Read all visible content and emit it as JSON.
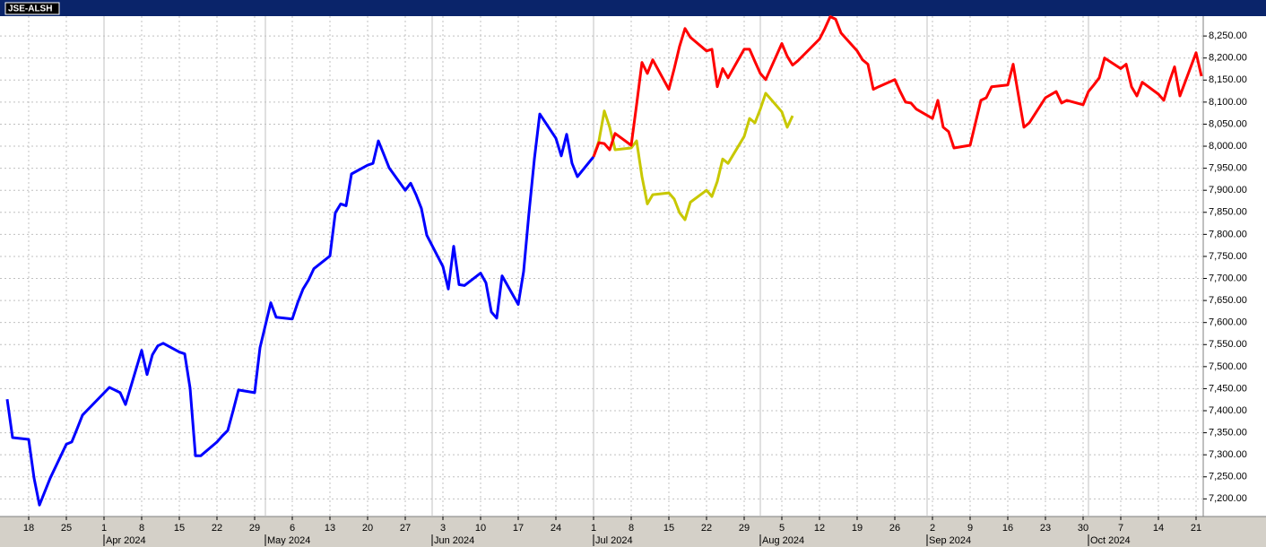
{
  "chart_data": {
    "type": "line",
    "title": "JSE-ALSH",
    "xlim": [
      "2024-03-14",
      "2024-10-22"
    ],
    "ylim": [
      7160,
      8295
    ],
    "yticks": [
      {
        "value": 7200,
        "label": "7,200.00"
      },
      {
        "value": 7250,
        "label": "7,250.00"
      },
      {
        "value": 7300,
        "label": "7,300.00"
      },
      {
        "value": 7350,
        "label": "7,350.00"
      },
      {
        "value": 7400,
        "label": "7,400.00"
      },
      {
        "value": 7450,
        "label": "7,450.00"
      },
      {
        "value": 7500,
        "label": "7,500.00"
      },
      {
        "value": 7550,
        "label": "7,550.00"
      },
      {
        "value": 7600,
        "label": "7,600.00"
      },
      {
        "value": 7650,
        "label": "7,650.00"
      },
      {
        "value": 7700,
        "label": "7,700.00"
      },
      {
        "value": 7750,
        "label": "7,750.00"
      },
      {
        "value": 7800,
        "label": "7,800.00"
      },
      {
        "value": 7850,
        "label": "7,850.00"
      },
      {
        "value": 7900,
        "label": "7,900.00"
      },
      {
        "value": 7950,
        "label": "7,950.00"
      },
      {
        "value": 8000,
        "label": "8,000.00"
      },
      {
        "value": 8050,
        "label": "8,050.00"
      },
      {
        "value": 8100,
        "label": "8,100.00"
      },
      {
        "value": 8150,
        "label": "8,150.00"
      },
      {
        "value": 8200,
        "label": "8,200.00"
      },
      {
        "value": 8250,
        "label": "8,250.00"
      }
    ],
    "xticks": [
      {
        "value": "2024-03-18",
        "label": "18"
      },
      {
        "value": "2024-03-25",
        "label": "25"
      },
      {
        "value": "2024-04-01",
        "label": "1"
      },
      {
        "value": "2024-04-08",
        "label": "8"
      },
      {
        "value": "2024-04-15",
        "label": "15"
      },
      {
        "value": "2024-04-22",
        "label": "22"
      },
      {
        "value": "2024-04-29",
        "label": "29"
      },
      {
        "value": "2024-05-06",
        "label": "6"
      },
      {
        "value": "2024-05-13",
        "label": "13"
      },
      {
        "value": "2024-05-20",
        "label": "20"
      },
      {
        "value": "2024-05-27",
        "label": "27"
      },
      {
        "value": "2024-06-03",
        "label": "3"
      },
      {
        "value": "2024-06-10",
        "label": "10"
      },
      {
        "value": "2024-06-17",
        "label": "17"
      },
      {
        "value": "2024-06-24",
        "label": "24"
      },
      {
        "value": "2024-07-01",
        "label": "1"
      },
      {
        "value": "2024-07-08",
        "label": "8"
      },
      {
        "value": "2024-07-15",
        "label": "15"
      },
      {
        "value": "2024-07-22",
        "label": "22"
      },
      {
        "value": "2024-07-29",
        "label": "29"
      },
      {
        "value": "2024-08-05",
        "label": "5"
      },
      {
        "value": "2024-08-12",
        "label": "12"
      },
      {
        "value": "2024-08-19",
        "label": "19"
      },
      {
        "value": "2024-08-26",
        "label": "26"
      },
      {
        "value": "2024-09-02",
        "label": "2"
      },
      {
        "value": "2024-09-09",
        "label": "9"
      },
      {
        "value": "2024-09-16",
        "label": "16"
      },
      {
        "value": "2024-09-23",
        "label": "23"
      },
      {
        "value": "2024-09-30",
        "label": "30"
      },
      {
        "value": "2024-10-07",
        "label": "7"
      },
      {
        "value": "2024-10-14",
        "label": "14"
      },
      {
        "value": "2024-10-21",
        "label": "21"
      }
    ],
    "month_ticks": [
      {
        "value": "2024-04-01",
        "label": "Apr 2024"
      },
      {
        "value": "2024-05-01",
        "label": "May 2024"
      },
      {
        "value": "2024-06-01",
        "label": "Jun 2024"
      },
      {
        "value": "2024-07-01",
        "label": "Jul 2024"
      },
      {
        "value": "2024-08-01",
        "label": "Aug 2024"
      },
      {
        "value": "2024-09-01",
        "label": "Sep 2024"
      },
      {
        "value": "2024-10-01",
        "label": "Oct 2024"
      }
    ],
    "grid": true,
    "series": [
      {
        "color": "#0000ff",
        "x": [
          "2024-03-14",
          "2024-03-15",
          "2024-03-18",
          "2024-03-19",
          "2024-03-20",
          "2024-03-22",
          "2024-03-25",
          "2024-03-26",
          "2024-03-27",
          "2024-03-28",
          "2024-04-02",
          "2024-04-03",
          "2024-04-04",
          "2024-04-05",
          "2024-04-08",
          "2024-04-09",
          "2024-04-10",
          "2024-04-11",
          "2024-04-12",
          "2024-04-15",
          "2024-04-16",
          "2024-04-17",
          "2024-04-18",
          "2024-04-19",
          "2024-04-22",
          "2024-04-23",
          "2024-04-24",
          "2024-04-25",
          "2024-04-26",
          "2024-04-29",
          "2024-04-30",
          "2024-05-02",
          "2024-05-03",
          "2024-05-06",
          "2024-05-07",
          "2024-05-08",
          "2024-05-09",
          "2024-05-10",
          "2024-05-13",
          "2024-05-14",
          "2024-05-15",
          "2024-05-16",
          "2024-05-17",
          "2024-05-20",
          "2024-05-21",
          "2024-05-22",
          "2024-05-23",
          "2024-05-24",
          "2024-05-27",
          "2024-05-28",
          "2024-05-29",
          "2024-05-30",
          "2024-05-31",
          "2024-06-03",
          "2024-06-04",
          "2024-06-05",
          "2024-06-06",
          "2024-06-07",
          "2024-06-10",
          "2024-06-11",
          "2024-06-12",
          "2024-06-13",
          "2024-06-14",
          "2024-06-17",
          "2024-06-18",
          "2024-06-19",
          "2024-06-20",
          "2024-06-21",
          "2024-06-24",
          "2024-06-25",
          "2024-06-26",
          "2024-06-27",
          "2024-06-28",
          "2024-07-01"
        ],
        "values": [
          7426,
          7339,
          7335,
          7247,
          7186,
          7247,
          7324,
          7329,
          7359,
          7390,
          7453,
          7447,
          7441,
          7414,
          7537,
          7482,
          7527,
          7547,
          7553,
          7533,
          7529,
          7451,
          7298,
          7298,
          7329,
          7343,
          7355,
          7400,
          7447,
          7441,
          7543,
          7645,
          7612,
          7608,
          7645,
          7676,
          7696,
          7722,
          7751,
          7849,
          7869,
          7865,
          7937,
          7957,
          7961,
          8012,
          7982,
          7951,
          7900,
          7916,
          7890,
          7859,
          7798,
          7727,
          7676,
          7773,
          7686,
          7684,
          7712,
          7690,
          7624,
          7610,
          7706,
          7641,
          7716,
          7849,
          7971,
          8073,
          8018,
          7978,
          8027,
          7961,
          7931,
          7976
        ]
      },
      {
        "color": "#c8c800",
        "x": [
          "2024-07-01",
          "2024-07-02",
          "2024-07-03",
          "2024-07-04",
          "2024-07-05",
          "2024-07-08",
          "2024-07-09",
          "2024-07-10",
          "2024-07-11",
          "2024-07-12",
          "2024-07-15",
          "2024-07-16",
          "2024-07-17",
          "2024-07-18",
          "2024-07-19",
          "2024-07-22",
          "2024-07-23",
          "2024-07-24",
          "2024-07-25",
          "2024-07-26",
          "2024-07-29",
          "2024-07-30",
          "2024-07-31",
          "2024-08-01",
          "2024-08-02",
          "2024-08-05",
          "2024-08-06",
          "2024-08-07"
        ],
        "values": [
          7976,
          8012,
          8080,
          8043,
          7992,
          7996,
          8012,
          7931,
          7869,
          7890,
          7894,
          7880,
          7849,
          7833,
          7873,
          7900,
          7886,
          7920,
          7971,
          7961,
          8022,
          8063,
          8053,
          8084,
          8120,
          8078,
          8043,
          8069
        ]
      },
      {
        "color": "#ff0000",
        "x": [
          "2024-07-01",
          "2024-07-02",
          "2024-07-03",
          "2024-07-04",
          "2024-07-05",
          "2024-07-08",
          "2024-07-09",
          "2024-07-10",
          "2024-07-11",
          "2024-07-12",
          "2024-07-15",
          "2024-07-16",
          "2024-07-17",
          "2024-07-18",
          "2024-07-19",
          "2024-07-22",
          "2024-07-23",
          "2024-07-24",
          "2024-07-25",
          "2024-07-26",
          "2024-07-29",
          "2024-07-30",
          "2024-07-31",
          "2024-08-01",
          "2024-08-02",
          "2024-08-05",
          "2024-08-06",
          "2024-08-07",
          "2024-08-08",
          "2024-08-12",
          "2024-08-13",
          "2024-08-14",
          "2024-08-15",
          "2024-08-16",
          "2024-08-19",
          "2024-08-20",
          "2024-08-21",
          "2024-08-22",
          "2024-08-23",
          "2024-08-26",
          "2024-08-27",
          "2024-08-28",
          "2024-08-29",
          "2024-08-30",
          "2024-09-02",
          "2024-09-03",
          "2024-09-04",
          "2024-09-05",
          "2024-09-06",
          "2024-09-09",
          "2024-09-10",
          "2024-09-11",
          "2024-09-12",
          "2024-09-13",
          "2024-09-16",
          "2024-09-17",
          "2024-09-18",
          "2024-09-19",
          "2024-09-20",
          "2024-09-23",
          "2024-09-25",
          "2024-09-26",
          "2024-09-27",
          "2024-09-30",
          "2024-10-01",
          "2024-10-02",
          "2024-10-03",
          "2024-10-04",
          "2024-10-07",
          "2024-10-08",
          "2024-10-09",
          "2024-10-10",
          "2024-10-11",
          "2024-10-14",
          "2024-10-15",
          "2024-10-16",
          "2024-10-17",
          "2024-10-18",
          "2024-10-21",
          "2024-10-22"
        ],
        "values": [
          7976,
          8008,
          8006,
          7992,
          8029,
          8002,
          8094,
          8190,
          8165,
          8196,
          8129,
          8176,
          8227,
          8267,
          8247,
          8216,
          8220,
          8135,
          8176,
          8155,
          8220,
          8220,
          8192,
          8165,
          8151,
          8233,
          8204,
          8184,
          8194,
          8243,
          8267,
          8294,
          8288,
          8257,
          8216,
          8196,
          8186,
          8129,
          8135,
          8151,
          8124,
          8100,
          8098,
          8084,
          8063,
          8104,
          8043,
          8033,
          7996,
          8002,
          8053,
          8104,
          8110,
          8135,
          8139,
          8186,
          8114,
          8043,
          8053,
          8110,
          8124,
          8098,
          8104,
          8094,
          8124,
          8139,
          8155,
          8200,
          8176,
          8186,
          8135,
          8114,
          8145,
          8118,
          8104,
          8145,
          8180,
          8114,
          8212,
          8159
        ]
      }
    ]
  }
}
